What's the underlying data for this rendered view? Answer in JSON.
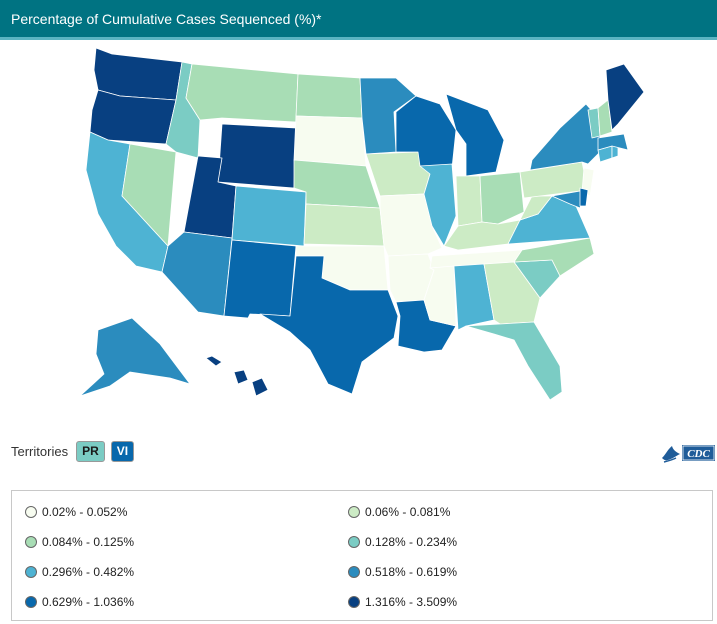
{
  "header": {
    "title": "Percentage of Cumulative Cases Sequenced (%)*"
  },
  "colors": {
    "header_bg": "#007382",
    "bin1": "#f7fcf0",
    "bin2": "#ccebc5",
    "bin3": "#a8ddb5",
    "bin4": "#7bccc4",
    "bin5": "#4eb3d3",
    "bin6": "#2b8cbe",
    "bin7": "#0868ac",
    "bin8": "#084081"
  },
  "territories": {
    "label": "Territories",
    "items": [
      {
        "code": "PR",
        "bin": "bin4"
      },
      {
        "code": "VI",
        "bin": "bin7"
      }
    ]
  },
  "logo": {
    "text": "CDC"
  },
  "legend": {
    "items": [
      {
        "label": "0.02% - 0.052%",
        "bin": "bin1"
      },
      {
        "label": "0.06% - 0.081%",
        "bin": "bin2"
      },
      {
        "label": "0.084% - 0.125%",
        "bin": "bin3"
      },
      {
        "label": "0.128% - 0.234%",
        "bin": "bin4"
      },
      {
        "label": "0.296% - 0.482%",
        "bin": "bin5"
      },
      {
        "label": "0.518% - 0.619%",
        "bin": "bin6"
      },
      {
        "label": "0.629% - 1.036%",
        "bin": "bin7"
      },
      {
        "label": "1.316% - 3.509%",
        "bin": "bin8"
      }
    ]
  },
  "states": [
    {
      "name": "Washington",
      "bin": "bin8"
    },
    {
      "name": "Oregon",
      "bin": "bin8"
    },
    {
      "name": "California",
      "bin": "bin5"
    },
    {
      "name": "Nevada",
      "bin": "bin3"
    },
    {
      "name": "Idaho",
      "bin": "bin4"
    },
    {
      "name": "Montana",
      "bin": "bin3"
    },
    {
      "name": "Wyoming",
      "bin": "bin8"
    },
    {
      "name": "Utah",
      "bin": "bin8"
    },
    {
      "name": "Arizona",
      "bin": "bin6"
    },
    {
      "name": "Colorado",
      "bin": "bin5"
    },
    {
      "name": "New Mexico",
      "bin": "bin7"
    },
    {
      "name": "North Dakota",
      "bin": "bin3"
    },
    {
      "name": "South Dakota",
      "bin": "bin1"
    },
    {
      "name": "Nebraska",
      "bin": "bin3"
    },
    {
      "name": "Kansas",
      "bin": "bin2"
    },
    {
      "name": "Oklahoma",
      "bin": "bin1"
    },
    {
      "name": "Texas",
      "bin": "bin7"
    },
    {
      "name": "Minnesota",
      "bin": "bin6"
    },
    {
      "name": "Iowa",
      "bin": "bin2"
    },
    {
      "name": "Missouri",
      "bin": "bin1"
    },
    {
      "name": "Arkansas",
      "bin": "bin1"
    },
    {
      "name": "Louisiana",
      "bin": "bin7"
    },
    {
      "name": "Wisconsin",
      "bin": "bin7"
    },
    {
      "name": "Illinois",
      "bin": "bin5"
    },
    {
      "name": "Michigan",
      "bin": "bin7"
    },
    {
      "name": "Indiana",
      "bin": "bin2"
    },
    {
      "name": "Ohio",
      "bin": "bin3"
    },
    {
      "name": "Kentucky",
      "bin": "bin2"
    },
    {
      "name": "Tennessee",
      "bin": "bin1"
    },
    {
      "name": "Mississippi",
      "bin": "bin1"
    },
    {
      "name": "Alabama",
      "bin": "bin5"
    },
    {
      "name": "Georgia",
      "bin": "bin2"
    },
    {
      "name": "Florida",
      "bin": "bin4"
    },
    {
      "name": "South Carolina",
      "bin": "bin4"
    },
    {
      "name": "North Carolina",
      "bin": "bin3"
    },
    {
      "name": "Virginia",
      "bin": "bin5"
    },
    {
      "name": "West Virginia",
      "bin": "bin2"
    },
    {
      "name": "Pennsylvania",
      "bin": "bin2"
    },
    {
      "name": "New York",
      "bin": "bin6"
    },
    {
      "name": "New Jersey",
      "bin": "bin1"
    },
    {
      "name": "Maryland",
      "bin": "bin6"
    },
    {
      "name": "Delaware",
      "bin": "bin7"
    },
    {
      "name": "Connecticut",
      "bin": "bin5"
    },
    {
      "name": "Rhode Island",
      "bin": "bin5"
    },
    {
      "name": "Massachusetts",
      "bin": "bin6"
    },
    {
      "name": "Vermont",
      "bin": "bin4"
    },
    {
      "name": "New Hampshire",
      "bin": "bin3"
    },
    {
      "name": "Maine",
      "bin": "bin8"
    },
    {
      "name": "Alaska",
      "bin": "bin6"
    },
    {
      "name": "Hawaii",
      "bin": "bin8"
    }
  ]
}
